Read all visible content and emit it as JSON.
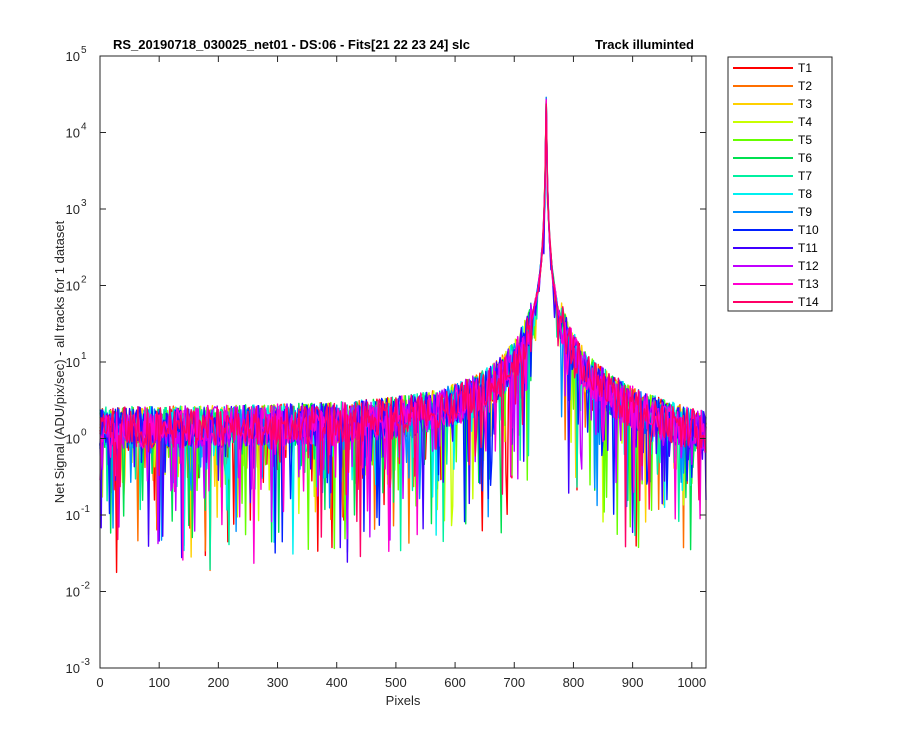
{
  "chart_data": {
    "type": "line",
    "title": "RS_20190718_030025_net01 - DS:06 - Fits[21  22  23  24]   slc",
    "subtitle": "Track illuminted",
    "xlabel": "Pixels",
    "ylabel": "Net Signal (ADU/pix/sec) - all tracks for 1 dataset",
    "xlim": [
      0,
      1024
    ],
    "ylim": [
      0.001,
      100000
    ],
    "yscale": "log",
    "grid": false,
    "legend_position": "outside-right",
    "x_ticks": [
      "0",
      "100",
      "200",
      "300",
      "400",
      "500",
      "600",
      "700",
      "800",
      "900",
      "1000"
    ],
    "y_ticks": [
      {
        "base": "10",
        "exp": "-3"
      },
      {
        "base": "10",
        "exp": "-2"
      },
      {
        "base": "10",
        "exp": "-1"
      },
      {
        "base": "10",
        "exp": "0"
      },
      {
        "base": "10",
        "exp": "1"
      },
      {
        "base": "10",
        "exp": "2"
      },
      {
        "base": "10",
        "exp": "3"
      },
      {
        "base": "10",
        "exp": "4"
      },
      {
        "base": "10",
        "exp": "5"
      }
    ],
    "peak_pixel": 754,
    "peak_value": 25000,
    "baseline_value": 1.3,
    "edge_value": 0.7,
    "series": [
      {
        "name": "T1",
        "color": "#ff0000"
      },
      {
        "name": "T2",
        "color": "#ff6f00"
      },
      {
        "name": "T3",
        "color": "#ffd000"
      },
      {
        "name": "T4",
        "color": "#c8ff00"
      },
      {
        "name": "T5",
        "color": "#66ff00"
      },
      {
        "name": "T6",
        "color": "#00e050"
      },
      {
        "name": "T7",
        "color": "#00f0a0"
      },
      {
        "name": "T8",
        "color": "#00f0f0"
      },
      {
        "name": "T9",
        "color": "#0090ff"
      },
      {
        "name": "T10",
        "color": "#0020ff"
      },
      {
        "name": "T11",
        "color": "#4000ff"
      },
      {
        "name": "T12",
        "color": "#c000ff"
      },
      {
        "name": "T13",
        "color": "#ff00d0"
      },
      {
        "name": "T14",
        "color": "#ff0066"
      }
    ]
  }
}
